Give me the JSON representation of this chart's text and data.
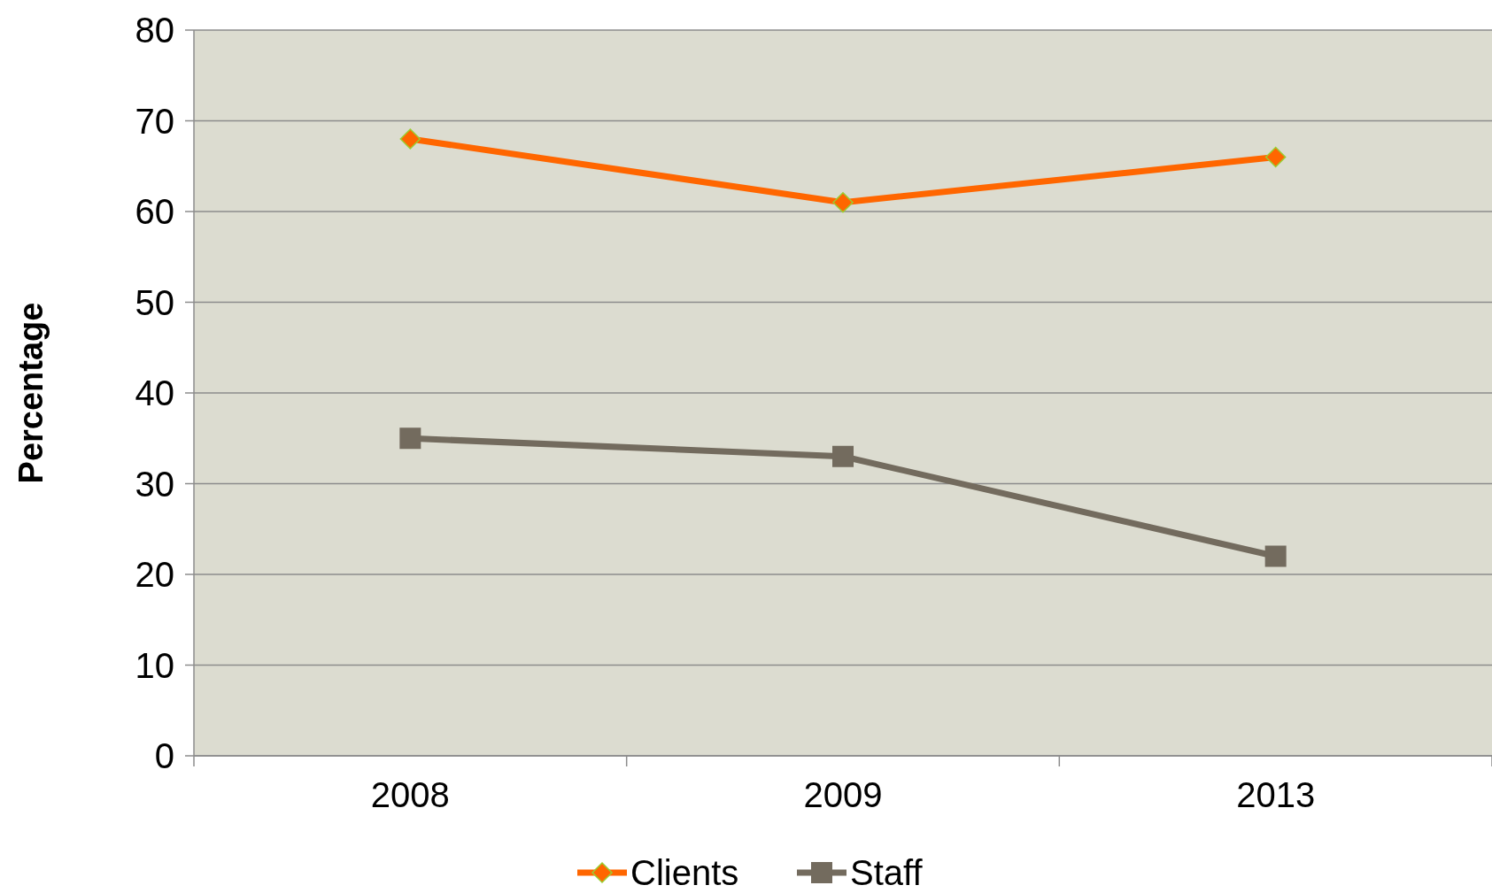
{
  "chart_data": {
    "type": "line",
    "ylabel": "Percentage",
    "categories": [
      "2008",
      "2009",
      "2013"
    ],
    "ylim": [
      0,
      80
    ],
    "yticks": [
      0,
      10,
      20,
      30,
      40,
      50,
      60,
      70,
      80
    ],
    "grid": "y",
    "legend": "bottom",
    "line_style": "solid",
    "series": [
      {
        "name": "Clients",
        "color": "#ff6600",
        "marker": "diamond",
        "values": [
          68,
          61,
          66
        ]
      },
      {
        "name": "Staff",
        "color": "#736b5e",
        "marker": "square",
        "values": [
          35,
          33,
          22
        ]
      }
    ]
  }
}
